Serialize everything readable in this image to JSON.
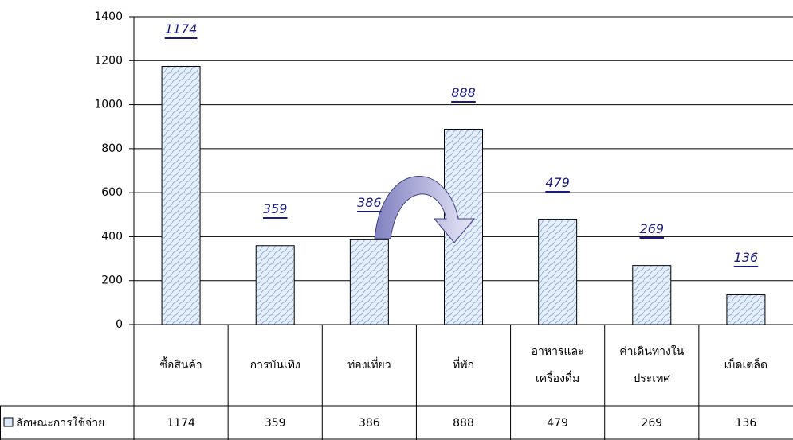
{
  "chart_data": {
    "type": "bar",
    "categories": [
      "ซื้อสินค้า",
      "การบันเทิง",
      "ท่องเที่ยว",
      "ที่พัก",
      "อาหารและ\nเครื่องดื่ม",
      "ค่าเดินทางใน\nประเทศ",
      "เบ็ดเตล็ด"
    ],
    "series": [
      {
        "name": "ลักษณะการใช้จ่าย",
        "color": "#dce8f7",
        "values": [
          1174,
          359,
          386,
          888,
          479,
          269,
          136
        ]
      }
    ],
    "ylim": [
      0,
      1400
    ],
    "yticks": [
      0,
      200,
      400,
      600,
      800,
      1000,
      1200,
      1400
    ],
    "grid": true
  }
}
